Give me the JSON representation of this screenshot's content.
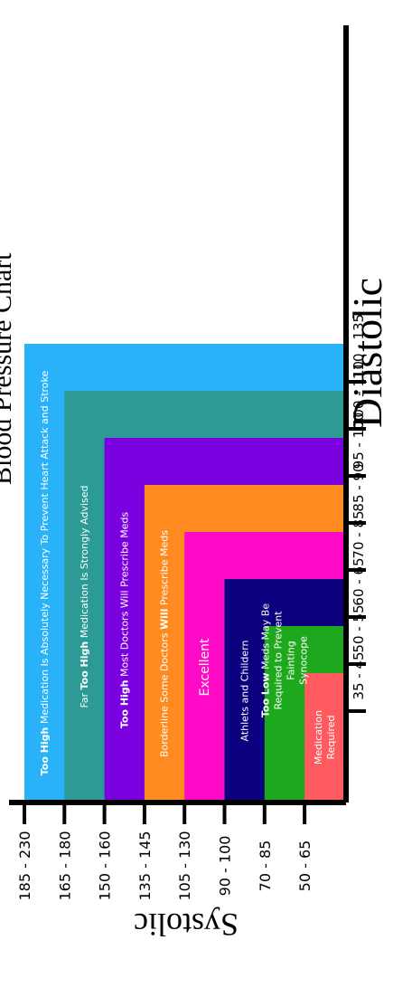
{
  "chart_data": {
    "type": "bar",
    "title": "Blood Pressure Chart",
    "xlabel": "Diastolic",
    "ylabel": "Systolic",
    "categories": [
      "50 - 65",
      "70 - 85",
      "90 - 100",
      "105 - 130",
      "135 - 145",
      "150 - 160",
      "165 - 180",
      "185 - 230"
    ],
    "diastolic_ticks": [
      "35 - 45",
      "50 - 55",
      "60 - 65",
      "70 - 85",
      "85 - 90",
      "95 - 100",
      "100 - 110",
      "110 - 135"
    ],
    "series": [
      {
        "level": 1,
        "color": "#ff5a5f",
        "label": [
          "Medication",
          "Required"
        ]
      },
      {
        "level": 2,
        "color": "#1ea81e",
        "label": [
          "Too Low Meds May Be",
          "Required to Prevent",
          "Fainting",
          "Synocope"
        ],
        "bold": "Too Low"
      },
      {
        "level": 3,
        "color": "#0d007f",
        "label": [
          "Athlets and Childern"
        ]
      },
      {
        "level": 4,
        "color": "#ff0ac7",
        "label": [
          "Excellent"
        ]
      },
      {
        "level": 5,
        "color": "#ff8a1f",
        "label": [
          "Borderline Some Doctors Will Prescribe Meds"
        ],
        "bold": "Will"
      },
      {
        "level": 6,
        "color": "#7b00e0",
        "label": [
          "Too High Most Doctors Will Prescribe Meds"
        ],
        "bold": "Too High"
      },
      {
        "level": 7,
        "color": "#2c9a95",
        "label": [
          "Far Too High Medication Is Strongly Advised"
        ],
        "bold": "Too High"
      },
      {
        "level": 8,
        "color": "#29b2f7",
        "label": [
          "Too High Medication Is Absolutely Necessary To Prevent Heart Attack and Stroke"
        ],
        "bold": "Too High"
      }
    ]
  }
}
